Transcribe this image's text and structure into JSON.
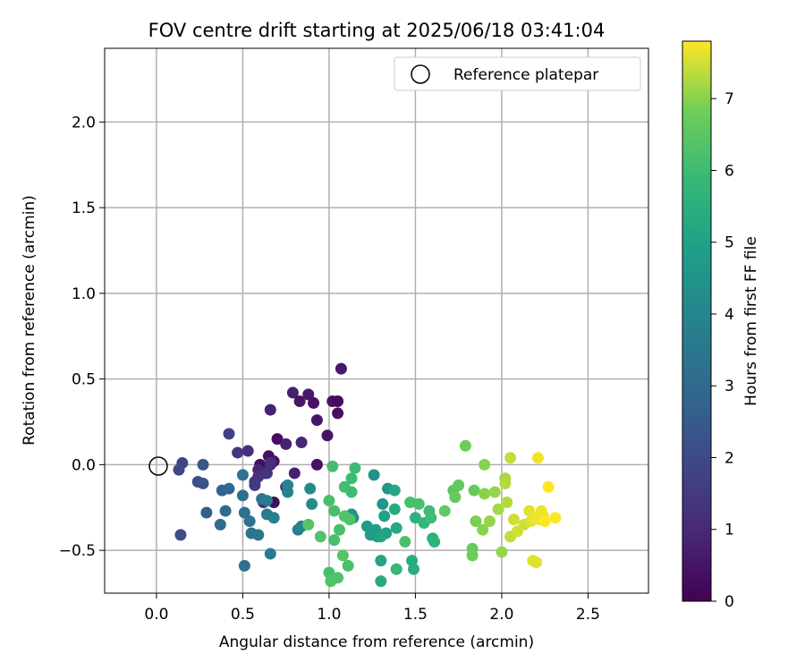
{
  "chart_data": {
    "type": "scatter",
    "title": "FOV centre drift starting at 2025/06/18 03:41:04",
    "xlabel": "Angular distance from reference (arcmin)",
    "ylabel": "Rotation from reference (arcmin)",
    "xlim": [
      -0.3,
      2.85
    ],
    "ylim": [
      -0.75,
      2.43
    ],
    "xticks": [
      0.0,
      0.5,
      1.0,
      1.5,
      2.0,
      2.5
    ],
    "yticks": [
      -0.5,
      0.0,
      0.5,
      1.0,
      1.5,
      2.0
    ],
    "xtick_labels": [
      "0.0",
      "0.5",
      "1.0",
      "1.5",
      "2.0",
      "2.5"
    ],
    "ytick_labels": [
      "−0.5",
      "0.0",
      "0.5",
      "1.0",
      "1.5",
      "2.0"
    ],
    "grid": true,
    "legend": {
      "placement": "top-right",
      "entries": [
        "Reference platepar"
      ]
    },
    "reference_point": {
      "x": 0.0,
      "y": 0.0,
      "label": "Reference platepar"
    },
    "colorbar": {
      "label": "Hours from first FF file",
      "range": [
        0,
        7.8
      ],
      "ticks": [
        0,
        1,
        2,
        3,
        4,
        5,
        6,
        7
      ],
      "tick_labels": [
        "0",
        "1",
        "2",
        "3",
        "4",
        "5",
        "6",
        "7"
      ],
      "colormap": "viridis"
    },
    "points": [
      {
        "x": 0.6,
        "y": 0.0,
        "h": 0.25
      },
      {
        "x": 0.65,
        "y": 0.05,
        "h": 0.35
      },
      {
        "x": 0.68,
        "y": 0.02,
        "h": 0.45
      },
      {
        "x": 0.7,
        "y": 0.15,
        "h": 0.3
      },
      {
        "x": 0.68,
        "y": -0.22,
        "h": 0.3
      },
      {
        "x": 0.63,
        "y": -0.05,
        "h": 0.5
      },
      {
        "x": 0.66,
        "y": 0.0,
        "h": 0.7
      },
      {
        "x": 0.59,
        "y": -0.03,
        "h": 0.9
      },
      {
        "x": 0.66,
        "y": 0.32,
        "h": 0.8
      },
      {
        "x": 0.75,
        "y": 0.12,
        "h": 0.8
      },
      {
        "x": 0.79,
        "y": 0.42,
        "h": 0.75
      },
      {
        "x": 0.8,
        "y": -0.05,
        "h": 0.8
      },
      {
        "x": 0.83,
        "y": 0.37,
        "h": 0.5
      },
      {
        "x": 0.88,
        "y": 0.41,
        "h": 0.6
      },
      {
        "x": 0.84,
        "y": 0.13,
        "h": 0.95
      },
      {
        "x": 0.93,
        "y": 0.26,
        "h": 0.5
      },
      {
        "x": 0.93,
        "y": 0.0,
        "h": 0.4
      },
      {
        "x": 0.91,
        "y": 0.36,
        "h": 0.4
      },
      {
        "x": 1.02,
        "y": 0.37,
        "h": 0.45
      },
      {
        "x": 1.05,
        "y": 0.37,
        "h": 0.3
      },
      {
        "x": 1.05,
        "y": 0.3,
        "h": 0.4
      },
      {
        "x": 0.99,
        "y": 0.17,
        "h": 0.5
      },
      {
        "x": 1.07,
        "y": 0.56,
        "h": 0.6
      },
      {
        "x": 0.57,
        "y": -0.1,
        "h": 1.2
      },
      {
        "x": 0.62,
        "y": -0.22,
        "h": 1.3
      },
      {
        "x": 0.64,
        "y": -0.05,
        "h": 1.3
      },
      {
        "x": 0.75,
        "y": -0.13,
        "h": 1.2
      },
      {
        "x": 0.53,
        "y": 0.08,
        "h": 1.2
      },
      {
        "x": 0.59,
        "y": -0.07,
        "h": 1.3
      },
      {
        "x": 0.66,
        "y": 0.01,
        "h": 1.2
      },
      {
        "x": 0.47,
        "y": 0.07,
        "h": 1.4
      },
      {
        "x": 0.57,
        "y": -0.12,
        "h": 1.5
      },
      {
        "x": 0.42,
        "y": 0.18,
        "h": 1.7
      },
      {
        "x": 0.15,
        "y": 0.01,
        "h": 1.8
      },
      {
        "x": 0.13,
        "y": -0.03,
        "h": 1.9
      },
      {
        "x": 0.14,
        "y": -0.41,
        "h": 2.0
      },
      {
        "x": 0.24,
        "y": -0.1,
        "h": 2.1
      },
      {
        "x": 0.27,
        "y": -0.11,
        "h": 2.2
      },
      {
        "x": 0.27,
        "y": 0.0,
        "h": 2.4
      },
      {
        "x": 0.29,
        "y": -0.28,
        "h": 2.6
      },
      {
        "x": 0.38,
        "y": -0.15,
        "h": 2.8
      },
      {
        "x": 0.42,
        "y": -0.14,
        "h": 2.9
      },
      {
        "x": 0.4,
        "y": -0.27,
        "h": 3.0
      },
      {
        "x": 0.37,
        "y": -0.35,
        "h": 3.1
      },
      {
        "x": 0.5,
        "y": -0.18,
        "h": 3.2
      },
      {
        "x": 0.5,
        "y": -0.06,
        "h": 3.3
      },
      {
        "x": 0.51,
        "y": -0.28,
        "h": 3.3
      },
      {
        "x": 0.54,
        "y": -0.33,
        "h": 3.3
      },
      {
        "x": 0.55,
        "y": -0.4,
        "h": 3.3
      },
      {
        "x": 0.59,
        "y": -0.41,
        "h": 3.4
      },
      {
        "x": 0.51,
        "y": -0.59,
        "h": 3.3
      },
      {
        "x": 0.61,
        "y": -0.2,
        "h": 3.5
      },
      {
        "x": 0.64,
        "y": -0.29,
        "h": 3.6
      },
      {
        "x": 0.64,
        "y": -0.21,
        "h": 3.7
      },
      {
        "x": 0.68,
        "y": -0.31,
        "h": 3.7
      },
      {
        "x": 0.66,
        "y": -0.52,
        "h": 3.6
      },
      {
        "x": 0.76,
        "y": -0.16,
        "h": 4.0
      },
      {
        "x": 0.76,
        "y": -0.12,
        "h": 3.9
      },
      {
        "x": 0.82,
        "y": -0.38,
        "h": 3.8
      },
      {
        "x": 0.84,
        "y": -0.36,
        "h": 4.0
      },
      {
        "x": 0.89,
        "y": -0.14,
        "h": 4.2
      },
      {
        "x": 0.9,
        "y": -0.23,
        "h": 4.2
      },
      {
        "x": 1.14,
        "y": -0.31,
        "h": 4.4
      },
      {
        "x": 1.13,
        "y": -0.29,
        "h": 4.5
      },
      {
        "x": 1.26,
        "y": -0.06,
        "h": 4.5
      },
      {
        "x": 1.34,
        "y": -0.14,
        "h": 4.6
      },
      {
        "x": 1.31,
        "y": -0.23,
        "h": 4.6
      },
      {
        "x": 1.22,
        "y": -0.36,
        "h": 4.8
      },
      {
        "x": 1.24,
        "y": -0.41,
        "h": 4.8
      },
      {
        "x": 1.27,
        "y": -0.38,
        "h": 4.9
      },
      {
        "x": 1.28,
        "y": -0.42,
        "h": 4.8
      },
      {
        "x": 1.32,
        "y": -0.3,
        "h": 5.0
      },
      {
        "x": 1.33,
        "y": -0.4,
        "h": 5.0
      },
      {
        "x": 1.3,
        "y": -0.42,
        "h": 5.1
      },
      {
        "x": 1.38,
        "y": -0.15,
        "h": 5.2
      },
      {
        "x": 1.38,
        "y": -0.26,
        "h": 5.3
      },
      {
        "x": 1.39,
        "y": -0.37,
        "h": 5.3
      },
      {
        "x": 1.3,
        "y": -0.56,
        "h": 5.1
      },
      {
        "x": 1.3,
        "y": -0.68,
        "h": 5.3
      },
      {
        "x": 1.39,
        "y": -0.61,
        "h": 5.4
      },
      {
        "x": 1.48,
        "y": -0.56,
        "h": 5.4
      },
      {
        "x": 1.49,
        "y": -0.61,
        "h": 5.4
      },
      {
        "x": 1.5,
        "y": -0.31,
        "h": 5.6
      },
      {
        "x": 1.55,
        "y": -0.34,
        "h": 5.8
      },
      {
        "x": 1.6,
        "y": -0.43,
        "h": 5.5
      },
      {
        "x": 1.61,
        "y": -0.45,
        "h": 5.7
      },
      {
        "x": 1.58,
        "y": -0.27,
        "h": 6.0
      },
      {
        "x": 1.59,
        "y": -0.31,
        "h": 6.0
      },
      {
        "x": 1.52,
        "y": -0.23,
        "h": 6.2
      },
      {
        "x": 1.47,
        "y": -0.22,
        "h": 6.2
      },
      {
        "x": 1.44,
        "y": -0.45,
        "h": 6.2
      },
      {
        "x": 1.39,
        "y": -0.61,
        "h": 5.9
      },
      {
        "x": 1.15,
        "y": -0.02,
        "h": 6.0
      },
      {
        "x": 1.13,
        "y": -0.08,
        "h": 6.0
      },
      {
        "x": 1.09,
        "y": -0.13,
        "h": 6.1
      },
      {
        "x": 1.13,
        "y": -0.16,
        "h": 6.0
      },
      {
        "x": 1.02,
        "y": -0.01,
        "h": 6.1
      },
      {
        "x": 1.0,
        "y": -0.21,
        "h": 6.2
      },
      {
        "x": 1.03,
        "y": -0.27,
        "h": 6.2
      },
      {
        "x": 1.09,
        "y": -0.3,
        "h": 6.3
      },
      {
        "x": 1.12,
        "y": -0.32,
        "h": 6.3
      },
      {
        "x": 1.06,
        "y": -0.38,
        "h": 6.2
      },
      {
        "x": 1.03,
        "y": -0.44,
        "h": 6.2
      },
      {
        "x": 0.95,
        "y": -0.42,
        "h": 6.3
      },
      {
        "x": 0.88,
        "y": -0.35,
        "h": 6.4
      },
      {
        "x": 1.08,
        "y": -0.53,
        "h": 6.4
      },
      {
        "x": 1.11,
        "y": -0.59,
        "h": 6.2
      },
      {
        "x": 1.0,
        "y": -0.63,
        "h": 6.2
      },
      {
        "x": 1.01,
        "y": -0.68,
        "h": 6.3
      },
      {
        "x": 1.05,
        "y": -0.66,
        "h": 6.3
      },
      {
        "x": 1.67,
        "y": -0.27,
        "h": 6.6
      },
      {
        "x": 1.72,
        "y": -0.15,
        "h": 6.5
      },
      {
        "x": 1.75,
        "y": -0.12,
        "h": 6.6
      },
      {
        "x": 1.73,
        "y": -0.19,
        "h": 6.7
      },
      {
        "x": 1.79,
        "y": 0.11,
        "h": 6.8
      },
      {
        "x": 1.84,
        "y": -0.15,
        "h": 6.7
      },
      {
        "x": 1.83,
        "y": -0.49,
        "h": 6.7
      },
      {
        "x": 1.83,
        "y": -0.53,
        "h": 6.8
      },
      {
        "x": 1.85,
        "y": -0.33,
        "h": 6.9
      },
      {
        "x": 1.89,
        "y": -0.38,
        "h": 7.0
      },
      {
        "x": 1.9,
        "y": -0.17,
        "h": 7.0
      },
      {
        "x": 1.9,
        "y": 0.0,
        "h": 7.0
      },
      {
        "x": 1.93,
        "y": -0.33,
        "h": 7.1
      },
      {
        "x": 1.96,
        "y": -0.16,
        "h": 7.1
      },
      {
        "x": 1.98,
        "y": -0.26,
        "h": 7.2
      },
      {
        "x": 2.0,
        "y": -0.51,
        "h": 7.1
      },
      {
        "x": 2.02,
        "y": -0.08,
        "h": 7.2
      },
      {
        "x": 2.02,
        "y": -0.11,
        "h": 7.3
      },
      {
        "x": 2.03,
        "y": -0.22,
        "h": 7.3
      },
      {
        "x": 2.05,
        "y": 0.04,
        "h": 7.4
      },
      {
        "x": 2.05,
        "y": -0.42,
        "h": 7.4
      },
      {
        "x": 2.07,
        "y": -0.32,
        "h": 7.5
      },
      {
        "x": 2.09,
        "y": -0.39,
        "h": 7.5
      },
      {
        "x": 2.13,
        "y": -0.35,
        "h": 7.5
      },
      {
        "x": 2.16,
        "y": -0.27,
        "h": 7.6
      },
      {
        "x": 2.17,
        "y": -0.33,
        "h": 7.6
      },
      {
        "x": 2.18,
        "y": -0.56,
        "h": 7.6
      },
      {
        "x": 2.2,
        "y": -0.57,
        "h": 7.6
      },
      {
        "x": 2.21,
        "y": 0.04,
        "h": 7.7
      },
      {
        "x": 2.22,
        "y": -0.32,
        "h": 7.7
      },
      {
        "x": 2.23,
        "y": -0.27,
        "h": 7.7
      },
      {
        "x": 2.24,
        "y": -0.3,
        "h": 7.7
      },
      {
        "x": 2.25,
        "y": -0.33,
        "h": 7.8
      },
      {
        "x": 2.27,
        "y": -0.13,
        "h": 7.8
      },
      {
        "x": 2.31,
        "y": -0.31,
        "h": 7.8
      },
      {
        "x": 2.19,
        "y": -0.31,
        "h": 7.7
      }
    ]
  }
}
